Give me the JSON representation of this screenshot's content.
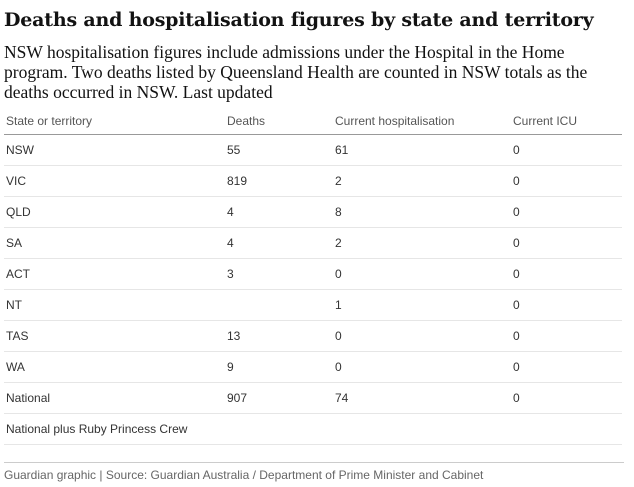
{
  "header": {
    "title": "Deaths and hospitalisation figures by state and territory",
    "subtitle": "NSW hospitalisation figures include admissions under the Hospital in the Home program. Two deaths listed by Queensland Health are counted in NSW totals as the deaths occurred in NSW. Last updated"
  },
  "chart_data": {
    "type": "table",
    "columns": [
      "State or territory",
      "Deaths",
      "Current hospitalisation",
      "Current ICU"
    ],
    "rows": [
      [
        "NSW",
        "55",
        "61",
        "0"
      ],
      [
        "VIC",
        "819",
        "2",
        "0"
      ],
      [
        "QLD",
        "4",
        "8",
        "0"
      ],
      [
        "SA",
        "4",
        "2",
        "0"
      ],
      [
        "ACT",
        "3",
        "0",
        "0"
      ],
      [
        "NT",
        "",
        "1",
        "0"
      ],
      [
        "TAS",
        "13",
        "0",
        "0"
      ],
      [
        "WA",
        "9",
        "0",
        "0"
      ],
      [
        "National",
        "907",
        "74",
        "0"
      ],
      [
        "National plus Ruby Princess Crew",
        "",
        "",
        ""
      ]
    ]
  },
  "footer": {
    "source": "Guardian graphic | Source: Guardian Australia / Department of Prime Minister and Cabinet"
  }
}
